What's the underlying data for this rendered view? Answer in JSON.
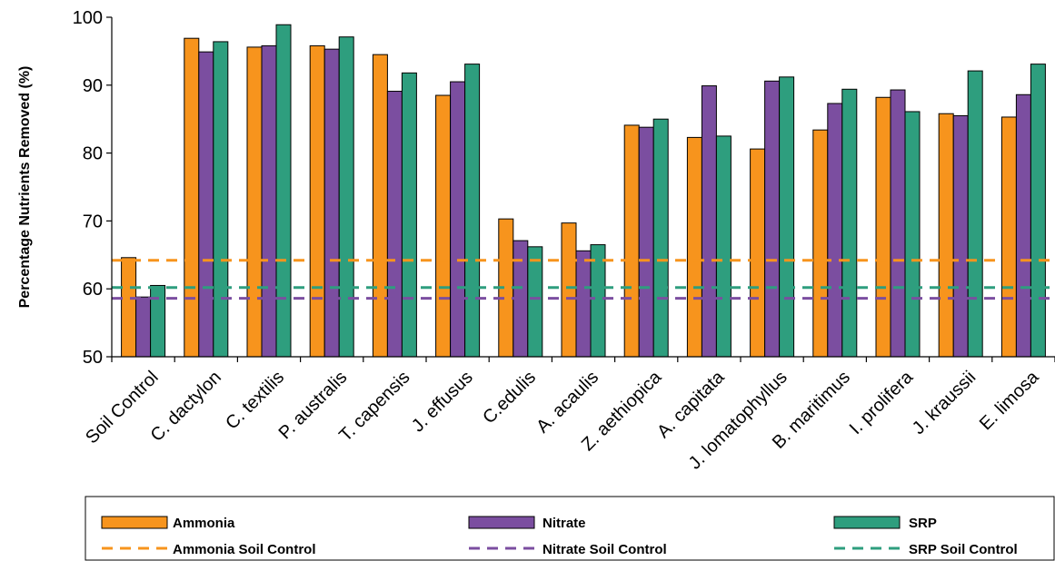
{
  "chart_data": {
    "type": "bar",
    "title": "",
    "xlabel": "",
    "ylabel": "Percentage Nutrients Removed (%)",
    "ylim": [
      50,
      100
    ],
    "yticks": [
      50,
      60,
      70,
      80,
      90,
      100
    ],
    "grid": false,
    "legend_position": "bottom",
    "categories": [
      "Soil Control",
      "C. dactylon",
      "C. textilis",
      "P. australis",
      "T. capensis",
      "J. effusus",
      "C.edulis",
      "A. acaulis",
      "Z. aethiopica",
      "A. capitata",
      "J. lomatophyllus",
      "B. maritimus",
      "I. prolifera",
      "J. kraussii",
      "E. limosa"
    ],
    "series": [
      {
        "name": "Ammonia",
        "color": "#F7941D",
        "values": [
          64.6,
          96.9,
          95.6,
          95.8,
          94.5,
          88.5,
          70.3,
          69.7,
          84.1,
          82.3,
          80.6,
          83.4,
          88.2,
          85.8,
          85.3
        ]
      },
      {
        "name": "Nitrate",
        "color": "#7B4EA0",
        "values": [
          58.8,
          94.9,
          95.8,
          95.3,
          89.1,
          90.5,
          67.1,
          65.6,
          83.8,
          89.9,
          90.6,
          87.3,
          89.3,
          85.5,
          88.6
        ]
      },
      {
        "name": "SRP",
        "color": "#2E9E7E",
        "values": [
          60.5,
          96.4,
          98.9,
          97.1,
          91.8,
          93.1,
          66.2,
          66.5,
          85.0,
          82.5,
          91.2,
          89.4,
          86.1,
          92.1,
          93.1
        ]
      }
    ],
    "reference_lines": [
      {
        "name": "Ammonia Soil Control",
        "color": "#F7941D",
        "value": 64.2
      },
      {
        "name": "Nitrate Soil Control",
        "color": "#7B4EA0",
        "value": 58.6
      },
      {
        "name": "SRP Soil Control",
        "color": "#2E9E7E",
        "value": 60.2
      }
    ]
  }
}
